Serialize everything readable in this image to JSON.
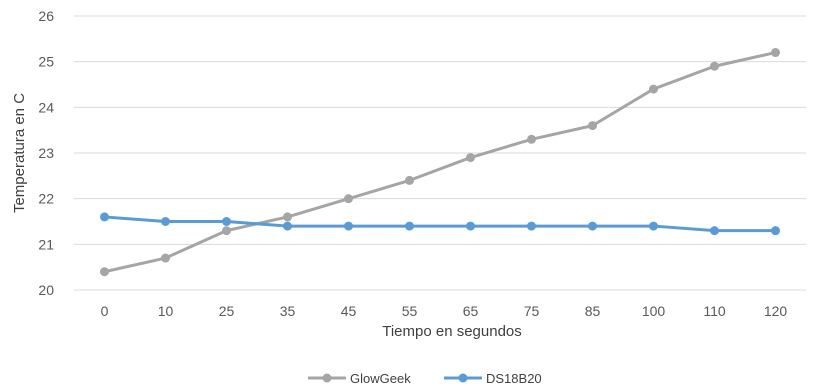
{
  "chart_data": {
    "type": "line",
    "categories": [
      "0",
      "10",
      "25",
      "35",
      "45",
      "55",
      "65",
      "75",
      "85",
      "100",
      "110",
      "120"
    ],
    "series": [
      {
        "name": "GlowGeek",
        "color": "#a5a5a5",
        "values": [
          20.4,
          20.7,
          21.3,
          21.6,
          22.0,
          22.4,
          22.9,
          23.3,
          23.6,
          24.4,
          24.9,
          25.2
        ]
      },
      {
        "name": "DS18B20",
        "color": "#5b9bd5",
        "values": [
          21.6,
          21.5,
          21.5,
          21.4,
          21.4,
          21.4,
          21.4,
          21.4,
          21.4,
          21.4,
          21.3,
          21.3
        ]
      }
    ],
    "xlabel": "Tiempo en segundos",
    "ylabel": "Temperatura en C",
    "ylim": [
      20,
      26
    ],
    "yticks": [
      "20",
      "21",
      "22",
      "23",
      "24",
      "25",
      "26"
    ],
    "grid": true,
    "legend_position": "bottom"
  }
}
